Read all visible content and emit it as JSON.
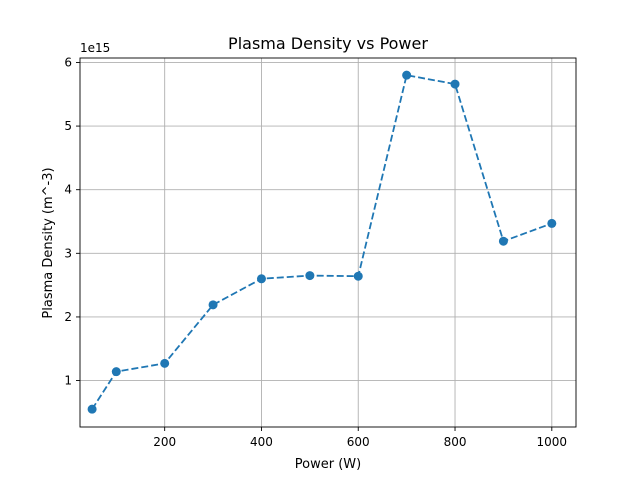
{
  "chart_data": {
    "type": "line",
    "title": "Plasma Density vs Power",
    "xlabel": "Power (W)",
    "ylabel": "Plasma Density (m^-3)",
    "y_offset_label": "1e15",
    "x_ticks": [
      200,
      400,
      600,
      800,
      1000
    ],
    "y_ticks": [
      1,
      2,
      3,
      4,
      5,
      6
    ],
    "x_tick_labels": [
      "200",
      "400",
      "600",
      "800",
      "1000"
    ],
    "y_tick_labels": [
      "1",
      "2",
      "3",
      "4",
      "5",
      "6"
    ],
    "xlim": [
      25,
      1050
    ],
    "ylim": [
      0.27,
      6.07
    ],
    "grid": true,
    "series": [
      {
        "color": "#1f77b4",
        "line_style": "dashed",
        "marker": "circle",
        "x": [
          50,
          100,
          200,
          300,
          400,
          500,
          600,
          700,
          800,
          900,
          1000
        ],
        "y": [
          0.55,
          1.14,
          1.27,
          2.19,
          2.6,
          2.65,
          2.64,
          5.8,
          5.66,
          3.19,
          3.47
        ]
      }
    ]
  }
}
